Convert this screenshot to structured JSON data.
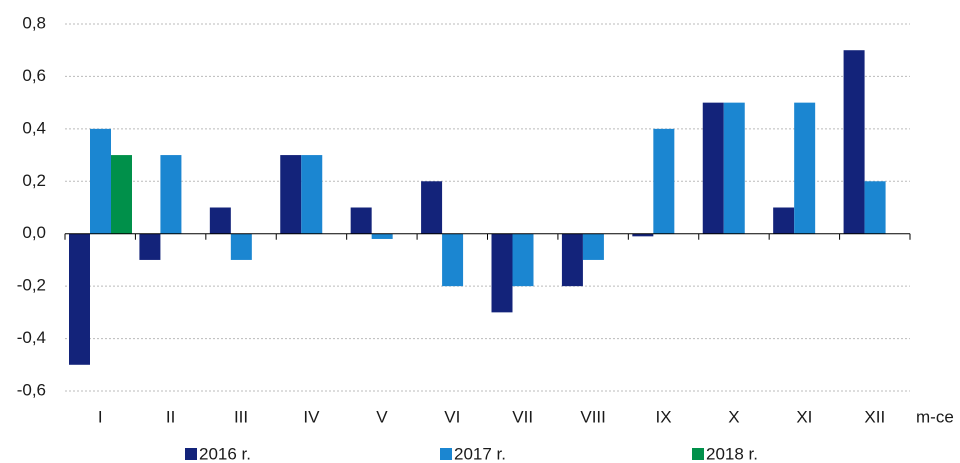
{
  "chart_data": {
    "type": "bar",
    "categories": [
      "I",
      "II",
      "III",
      "IV",
      "V",
      "VI",
      "VII",
      "VIII",
      "IX",
      "X",
      "XI",
      "XII"
    ],
    "x_label": "m-ce",
    "series": [
      {
        "name": "2016 r.",
        "color": "#13237a",
        "values": [
          -0.5,
          -0.1,
          0.1,
          0.3,
          0.1,
          0.2,
          -0.3,
          -0.2,
          -0.01,
          0.5,
          0.1,
          0.7
        ]
      },
      {
        "name": "2017 r.",
        "color": "#1b86d1",
        "values": [
          0.4,
          0.3,
          -0.1,
          0.3,
          -0.02,
          -0.2,
          -0.2,
          -0.1,
          0.4,
          0.5,
          0.5,
          0.2
        ]
      },
      {
        "name": "2018 r.",
        "color": "#00904a",
        "values": [
          0.3,
          null,
          null,
          null,
          null,
          null,
          null,
          null,
          null,
          null,
          null,
          null
        ]
      }
    ],
    "ylim": [
      -0.6,
      0.8
    ],
    "yticks": [
      {
        "value": -0.6,
        "label": "-0,6"
      },
      {
        "value": -0.4,
        "label": "-0,4"
      },
      {
        "value": -0.2,
        "label": "-0,2"
      },
      {
        "value": 0,
        "label": "0,0"
      },
      {
        "value": 0.2,
        "label": "0,2"
      },
      {
        "value": 0.4,
        "label": "0,4"
      },
      {
        "value": 0.6,
        "label": "0,6"
      },
      {
        "value": 0.8,
        "label": "0,8"
      }
    ],
    "grid": true
  }
}
